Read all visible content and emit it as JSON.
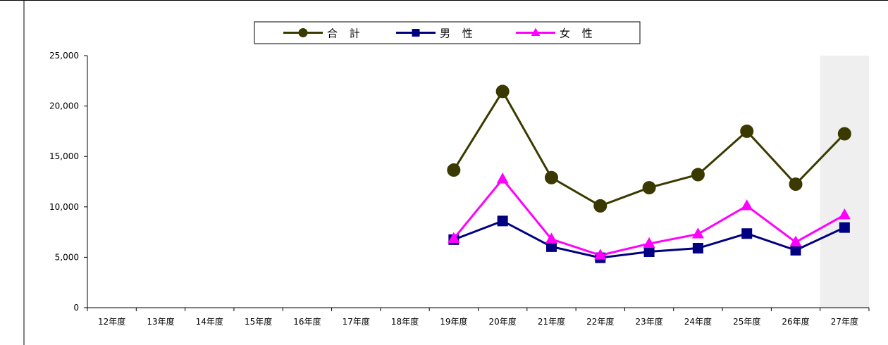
{
  "chart_data": {
    "type": "line",
    "title": "",
    "xlabel": "",
    "ylabel": "",
    "categories": [
      "12年度",
      "13年度",
      "14年度",
      "15年度",
      "16年度",
      "17年度",
      "18年度",
      "19年度",
      "20年度",
      "21年度",
      "22年度",
      "23年度",
      "24年度",
      "25年度",
      "26年度",
      "27年度"
    ],
    "ylim": [
      0,
      25000
    ],
    "yticks": [
      "0",
      "5,000",
      "10,000",
      "15,000",
      "20,000",
      "25,000"
    ],
    "ytick_values": [
      0,
      5000,
      10000,
      15000,
      20000,
      25000
    ],
    "grid": false,
    "legend_position": "top-center",
    "highlight_category": "27年度",
    "series": [
      {
        "name": "合 計",
        "color": "#3a3a00",
        "marker": "circle",
        "values": [
          null,
          null,
          null,
          null,
          null,
          null,
          null,
          13650,
          21450,
          12900,
          10100,
          11900,
          13200,
          17500,
          12250,
          17250
        ]
      },
      {
        "name": "男 性",
        "color": "#000080",
        "marker": "square",
        "values": [
          null,
          null,
          null,
          null,
          null,
          null,
          null,
          6750,
          8600,
          6050,
          4950,
          5550,
          5900,
          7350,
          5700,
          7950
        ]
      },
      {
        "name": "女 性",
        "color": "#ff00ff",
        "marker": "triangle",
        "values": [
          null,
          null,
          null,
          null,
          null,
          null,
          null,
          6850,
          12750,
          6800,
          5200,
          6350,
          7300,
          10100,
          6500,
          9200
        ]
      }
    ]
  }
}
